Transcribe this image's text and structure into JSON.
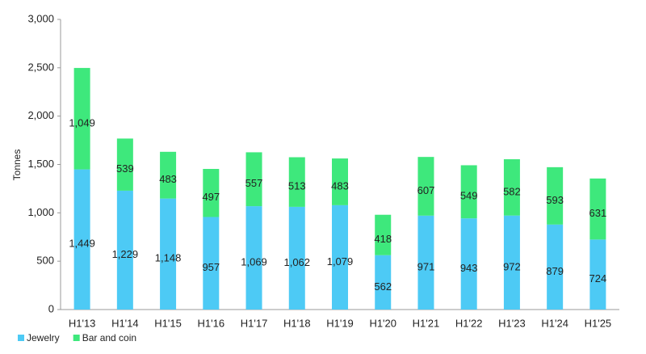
{
  "chart_data": {
    "type": "stacked_bar",
    "y_label": "Tonnes",
    "categories": [
      "H1'13",
      "H1'14",
      "H1'15",
      "H1'16",
      "H1'17",
      "H1'18",
      "H1'19",
      "H1'20",
      "H1'21",
      "H1'22",
      "H1'23",
      "H1'24",
      "H1'25"
    ],
    "series": [
      {
        "name": "Jewelry",
        "color": "#4dcaf5",
        "values": [
          1449,
          1229,
          1148,
          957,
          1069,
          1062,
          1079,
          562,
          971,
          943,
          972,
          879,
          724
        ],
        "value_labels": [
          "1,449",
          "1,229",
          "1,148",
          "957",
          "1,069",
          "1,062",
          "1,079",
          "562",
          "971",
          "943",
          "972",
          "879",
          "724"
        ]
      },
      {
        "name": "Bar and coin",
        "color": "#3ee87c",
        "values": [
          1049,
          539,
          483,
          497,
          557,
          513,
          483,
          418,
          607,
          549,
          582,
          593,
          631
        ],
        "value_labels": [
          "1,049",
          "539",
          "483",
          "497",
          "557",
          "513",
          "483",
          "418",
          "607",
          "549",
          "582",
          "593",
          "631"
        ]
      }
    ],
    "ylim": [
      0,
      3000
    ],
    "yticks": [
      0,
      500,
      {
        "value": 1000,
        "label": "1,000"
      },
      {
        "value": 1500,
        "label": "1,500"
      },
      {
        "value": 2000,
        "label": "2,000"
      },
      {
        "value": 2500,
        "label": "2,500"
      },
      {
        "value": 3000,
        "label": "3,000"
      }
    ],
    "grid": false
  }
}
